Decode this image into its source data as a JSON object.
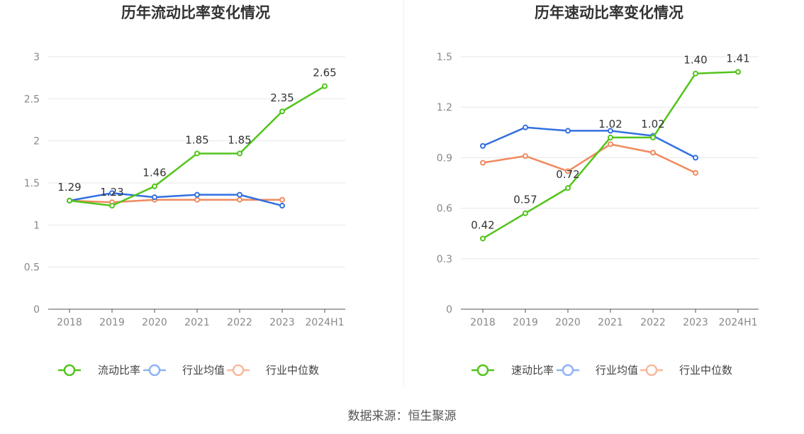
{
  "source": "数据来源：恒生聚源",
  "colors": {
    "main": "#52c41a",
    "avg": "#3370e0",
    "median": "#f08a5d",
    "axis": "#555555",
    "grid": "#e4e6ee",
    "tick_text": "#888888",
    "label_text": "#333333",
    "title_text": "#333333",
    "legend_avg": "#8fb2f3",
    "legend_median": "#f8b99c"
  },
  "chart_data": [
    {
      "type": "line",
      "title": "历年流动比率变化情况",
      "categories": [
        "2018",
        "2019",
        "2020",
        "2021",
        "2022",
        "2023",
        "2024H1"
      ],
      "ylim": [
        0,
        3
      ],
      "yticks": [
        "0",
        "0.5",
        "1",
        "1.5",
        "2",
        "2.5",
        "3"
      ],
      "ytick_values": [
        0,
        0.5,
        1,
        1.5,
        2,
        2.5,
        3
      ],
      "grid": true,
      "legend_position": "bottom",
      "series": [
        {
          "name": "流动比率",
          "role": "main",
          "values": [
            1.29,
            1.23,
            1.46,
            1.85,
            1.85,
            2.35,
            2.65
          ],
          "labels": [
            "1.29",
            "1.23",
            "1.46",
            "1.85",
            "1.85",
            "2.35",
            "2.65"
          ]
        },
        {
          "name": "行业均值",
          "role": "avg",
          "values": [
            1.29,
            1.38,
            1.33,
            1.36,
            1.36,
            1.23,
            null
          ]
        },
        {
          "name": "行业中位数",
          "role": "median",
          "values": [
            1.29,
            1.27,
            1.3,
            1.3,
            1.3,
            1.3,
            null
          ]
        }
      ]
    },
    {
      "type": "line",
      "title": "历年速动比率变化情况",
      "categories": [
        "2018",
        "2019",
        "2020",
        "2021",
        "2022",
        "2023",
        "2024H1"
      ],
      "ylim": [
        0,
        1.5
      ],
      "yticks": [
        "0",
        "0.3",
        "0.6",
        "0.9",
        "1.2",
        "1.5"
      ],
      "ytick_values": [
        0,
        0.3,
        0.6,
        0.9,
        1.2,
        1.5
      ],
      "grid": true,
      "legend_position": "bottom",
      "series": [
        {
          "name": "速动比率",
          "role": "main",
          "values": [
            0.42,
            0.57,
            0.72,
            1.02,
            1.02,
            1.4,
            1.41
          ],
          "labels": [
            "0.42",
            "0.57",
            "0.72",
            "1.02",
            "1.02",
            "1.40",
            "1.41"
          ]
        },
        {
          "name": "行业均值",
          "role": "avg",
          "values": [
            0.97,
            1.08,
            1.06,
            1.06,
            1.03,
            0.9,
            null
          ]
        },
        {
          "name": "行业中位数",
          "role": "median",
          "values": [
            0.87,
            0.91,
            0.82,
            0.98,
            0.93,
            0.81,
            null
          ]
        }
      ]
    }
  ]
}
